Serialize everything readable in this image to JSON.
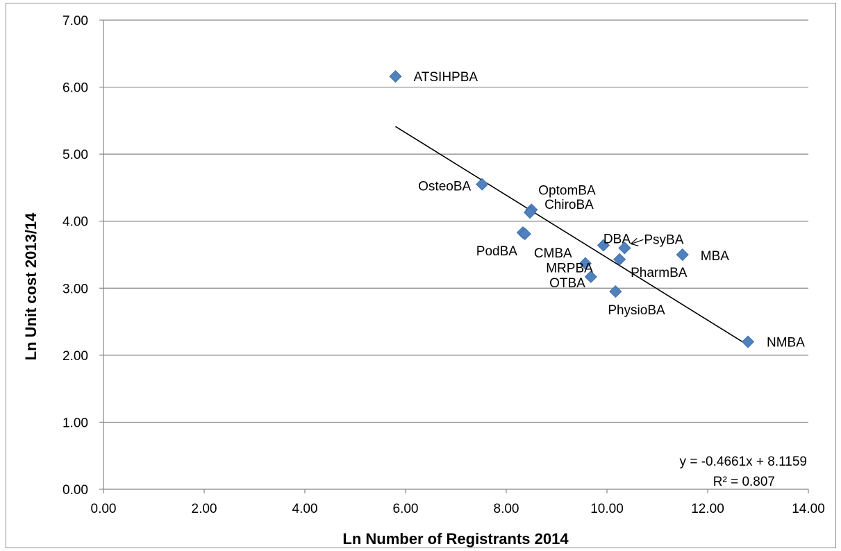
{
  "chart_data": {
    "type": "scatter",
    "title": "",
    "xlabel": "Ln Number of Registrants 2014",
    "ylabel": "Ln Unit cost 2013/14",
    "xlim": [
      0,
      14
    ],
    "ylim": [
      0,
      7
    ],
    "x_ticks": [
      "0.00",
      "2.00",
      "4.00",
      "6.00",
      "8.00",
      "10.00",
      "12.00",
      "14.00"
    ],
    "y_ticks": [
      "0.00",
      "1.00",
      "2.00",
      "3.00",
      "4.00",
      "5.00",
      "6.00",
      "7.00"
    ],
    "grid": "horizontal",
    "marker_color": "#4f81bd",
    "points": [
      {
        "label": "ATSIHPBA",
        "x": 5.8,
        "y": 6.16
      },
      {
        "label": "OsteoBA",
        "x": 7.52,
        "y": 4.55
      },
      {
        "label": "OptomBA",
        "x": 8.5,
        "y": 4.17
      },
      {
        "label": "ChiroBA",
        "x": 8.47,
        "y": 4.13
      },
      {
        "label": "PodBA",
        "x": 8.33,
        "y": 3.83
      },
      {
        "label": "CMBA",
        "x": 8.37,
        "y": 3.81
      },
      {
        "label": "DBA",
        "x": 9.93,
        "y": 3.64
      },
      {
        "label": "PsyBA",
        "x": 10.35,
        "y": 3.6
      },
      {
        "label": "MBA",
        "x": 11.5,
        "y": 3.5
      },
      {
        "label": "PharmBA",
        "x": 10.25,
        "y": 3.43
      },
      {
        "label": "MRPBA",
        "x": 9.57,
        "y": 3.37
      },
      {
        "label": "OTBA",
        "x": 9.68,
        "y": 3.17
      },
      {
        "label": "PhysioBA",
        "x": 10.17,
        "y": 2.95
      },
      {
        "label": "NMBA",
        "x": 12.8,
        "y": 2.2
      }
    ],
    "trendline": {
      "type": "linear",
      "slope": -0.4661,
      "intercept": 8.1159,
      "x_range": [
        5.8,
        12.8
      ],
      "equation_text": "y = -0.4661x + 8.1159",
      "r2_text": "R² = 0.807"
    }
  }
}
